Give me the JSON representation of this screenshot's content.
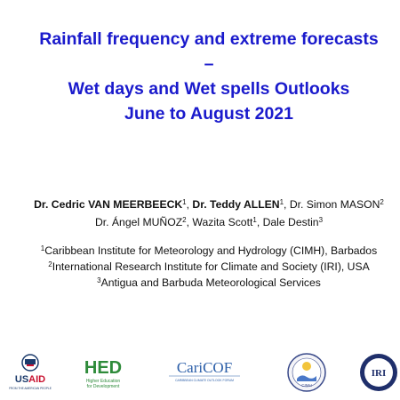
{
  "title": {
    "line1": "Rainfall frequency and extreme forecasts",
    "line2": "–",
    "line3": "Wet days and Wet spells Outlooks",
    "line4": "June to August 2021"
  },
  "authors": {
    "a1": "Dr. Cedric VAN MEERBEECK",
    "a1_sup": "1",
    "sep1": ", ",
    "a2": "Dr. Teddy ALLEN",
    "a2_sup": "1",
    "sep2": ", ",
    "a3": "Dr. Simon MASON",
    "a3_sup": "2",
    "a4": "Dr. Ángel MUÑOZ",
    "a4_sup": "2",
    "sep4": ", ",
    "a5": "Wazita Scott",
    "a5_sup": "1",
    "sep5": ", ",
    "a6": "Dale Destin",
    "a6_sup": "3"
  },
  "affiliations": [
    {
      "sup": "1",
      "text": "Caribbean Institute for Meteorology and Hydrology (CIMH), Barbados"
    },
    {
      "sup": "2",
      "text": "International Research Institute for Climate and Society (IRI), USA"
    },
    {
      "sup": "3",
      "text": "Antigua and Barbuda Meteorological Services"
    }
  ],
  "logos": {
    "usaid": {
      "text": "USAID",
      "tagline": "FROM THE AMERICAN PEOPLE"
    },
    "hed": {
      "text": "HED",
      "tagline1": "Higher Education",
      "tagline2": "for Development"
    },
    "caricof": {
      "text": "CariCOF",
      "tagline": "CARIBBEAN CLIMATE OUTLOOK FORUM"
    },
    "cimh": {
      "text": "CIMH"
    },
    "iri": {
      "text": "IRI"
    }
  },
  "colors": {
    "title": "#1a1acc",
    "text": "#111111",
    "usaid_blue": "#1b3a6b",
    "usaid_red": "#c8102e",
    "hed_green": "#2e8b3a",
    "caricof_blue": "#2b5ea8",
    "iri_navy": "#1f2f6b"
  }
}
